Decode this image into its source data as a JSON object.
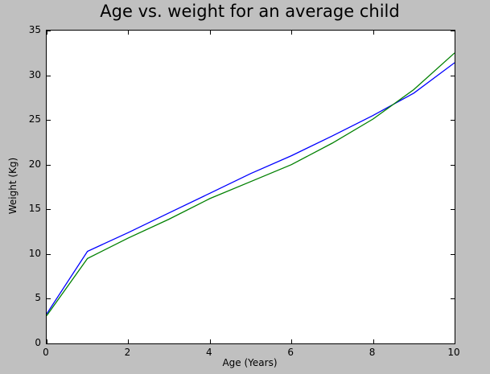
{
  "chart_data": {
    "type": "line",
    "title": "Age vs. weight for an average child",
    "xlabel": "Age (Years)",
    "ylabel": "Weight (Kg)",
    "xlim": [
      0,
      10
    ],
    "ylim": [
      0,
      35
    ],
    "xticks": [
      0,
      2,
      4,
      6,
      8,
      10
    ],
    "yticks": [
      0,
      5,
      10,
      15,
      20,
      25,
      30,
      35
    ],
    "grid": false,
    "legend_position": "none",
    "x": [
      0,
      1,
      2,
      3,
      4,
      5,
      6,
      7,
      8,
      9,
      10
    ],
    "series": [
      {
        "name": "blue-line",
        "color": "#0000ff",
        "values": [
          3.3,
          10.3,
          12.4,
          14.6,
          16.8,
          19.0,
          21.0,
          23.2,
          25.5,
          28.0,
          31.4
        ]
      },
      {
        "name": "green-line",
        "color": "#008000",
        "values": [
          3.1,
          9.5,
          11.8,
          13.9,
          16.2,
          18.1,
          20.0,
          22.4,
          25.1,
          28.4,
          32.5
        ]
      }
    ],
    "colors": {
      "figure_bg": "#c0c0c0",
      "axes_bg": "#ffffff",
      "spine": "#000000",
      "text": "#000000"
    }
  }
}
